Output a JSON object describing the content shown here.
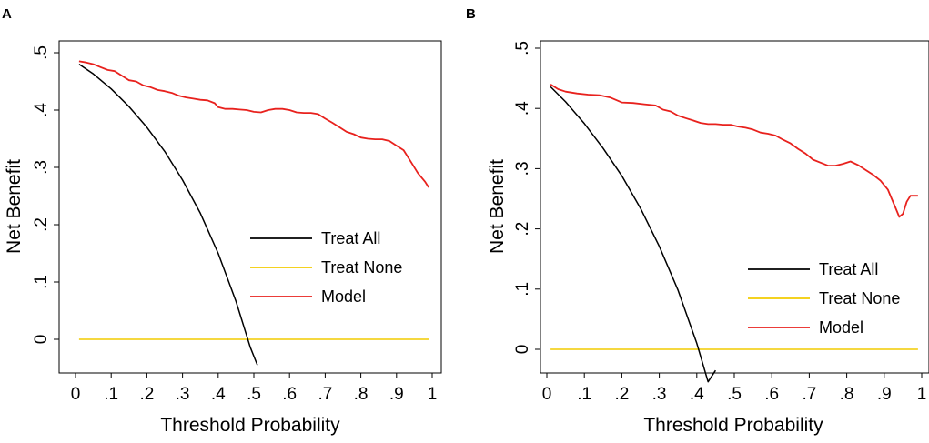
{
  "chart_data": [
    {
      "panel": "A",
      "type": "line",
      "title": "",
      "xlabel": "Threshold Probability",
      "ylabel": "Net Benefit",
      "xlim": [
        0,
        1
      ],
      "ylim": [
        -0.05,
        0.5
      ],
      "x_ticks": [
        0,
        0.1,
        0.2,
        0.3,
        0.4,
        0.5,
        0.6,
        0.7,
        0.8,
        0.9,
        1
      ],
      "x_tick_labels": [
        "0",
        ".1",
        ".2",
        ".3",
        ".4",
        ".5",
        ".6",
        ".7",
        ".8",
        ".9",
        "1"
      ],
      "y_ticks": [
        0,
        0.1,
        0.2,
        0.3,
        0.4,
        0.5
      ],
      "y_tick_labels": [
        "0",
        ".1",
        ".2",
        ".3",
        ".4",
        ".5"
      ],
      "legend_position": "right",
      "series": [
        {
          "name": "Treat All",
          "color": "#000000",
          "x": [
            0.01,
            0.05,
            0.1,
            0.15,
            0.2,
            0.25,
            0.3,
            0.35,
            0.4,
            0.45,
            0.49,
            0.51
          ],
          "y": [
            0.48,
            0.463,
            0.437,
            0.406,
            0.37,
            0.328,
            0.278,
            0.22,
            0.15,
            0.066,
            -0.014,
            -0.045
          ]
        },
        {
          "name": "Treat None",
          "color": "#f2cc00",
          "x": [
            0.01,
            0.99
          ],
          "y": [
            0,
            0
          ]
        },
        {
          "name": "Model",
          "color": "#e8211d",
          "x": [
            0.01,
            0.03,
            0.05,
            0.07,
            0.09,
            0.11,
            0.13,
            0.15,
            0.17,
            0.19,
            0.21,
            0.23,
            0.25,
            0.27,
            0.29,
            0.31,
            0.33,
            0.35,
            0.37,
            0.39,
            0.4,
            0.42,
            0.44,
            0.46,
            0.48,
            0.5,
            0.52,
            0.54,
            0.56,
            0.58,
            0.6,
            0.62,
            0.64,
            0.66,
            0.68,
            0.7,
            0.72,
            0.74,
            0.76,
            0.78,
            0.8,
            0.82,
            0.84,
            0.86,
            0.88,
            0.9,
            0.92,
            0.94,
            0.96,
            0.98,
            0.99
          ],
          "y": [
            0.485,
            0.483,
            0.48,
            0.475,
            0.47,
            0.468,
            0.46,
            0.452,
            0.45,
            0.443,
            0.44,
            0.435,
            0.433,
            0.43,
            0.425,
            0.422,
            0.42,
            0.418,
            0.417,
            0.412,
            0.405,
            0.402,
            0.402,
            0.401,
            0.4,
            0.397,
            0.396,
            0.4,
            0.402,
            0.402,
            0.4,
            0.396,
            0.395,
            0.395,
            0.393,
            0.385,
            0.378,
            0.37,
            0.362,
            0.358,
            0.352,
            0.35,
            0.349,
            0.349,
            0.346,
            0.338,
            0.33,
            0.31,
            0.29,
            0.275,
            0.265
          ]
        }
      ]
    },
    {
      "panel": "B",
      "type": "line",
      "title": "",
      "xlabel": "Threshold Probability",
      "ylabel": "Net Benefit",
      "xlim": [
        0,
        1
      ],
      "ylim": [
        -0.03,
        0.5
      ],
      "x_ticks": [
        0,
        0.1,
        0.2,
        0.3,
        0.4,
        0.5,
        0.6,
        0.7,
        0.8,
        0.9,
        1
      ],
      "x_tick_labels": [
        "0",
        ".1",
        ".2",
        ".3",
        ".4",
        ".5",
        ".6",
        ".7",
        ".8",
        ".9",
        "1"
      ],
      "y_ticks": [
        0,
        0.1,
        0.2,
        0.3,
        0.4,
        0.5
      ],
      "y_tick_labels": [
        "0",
        ".1",
        ".2",
        ".3",
        ".4",
        ".5"
      ],
      "legend_position": "bottom-right",
      "series": [
        {
          "name": "Treat All",
          "color": "#000000",
          "x": [
            0.01,
            0.05,
            0.1,
            0.15,
            0.2,
            0.25,
            0.3,
            0.35,
            0.4,
            0.43,
            0.45
          ],
          "y": [
            0.436,
            0.411,
            0.375,
            0.334,
            0.288,
            0.234,
            0.171,
            0.098,
            0.01,
            -0.054,
            -0.035
          ]
        },
        {
          "name": "Treat None",
          "color": "#f2cc00",
          "x": [
            0.01,
            0.99
          ],
          "y": [
            0,
            0
          ]
        },
        {
          "name": "Model",
          "color": "#e8211d",
          "x": [
            0.01,
            0.03,
            0.05,
            0.08,
            0.11,
            0.14,
            0.17,
            0.2,
            0.23,
            0.26,
            0.29,
            0.31,
            0.33,
            0.35,
            0.37,
            0.39,
            0.41,
            0.43,
            0.45,
            0.47,
            0.49,
            0.51,
            0.53,
            0.55,
            0.57,
            0.59,
            0.61,
            0.63,
            0.65,
            0.67,
            0.69,
            0.71,
            0.73,
            0.75,
            0.77,
            0.79,
            0.81,
            0.83,
            0.85,
            0.87,
            0.89,
            0.91,
            0.92,
            0.93,
            0.94,
            0.95,
            0.96,
            0.97,
            0.99
          ],
          "y": [
            0.44,
            0.432,
            0.428,
            0.425,
            0.423,
            0.422,
            0.418,
            0.41,
            0.409,
            0.407,
            0.405,
            0.398,
            0.395,
            0.388,
            0.384,
            0.38,
            0.376,
            0.374,
            0.374,
            0.373,
            0.373,
            0.37,
            0.368,
            0.365,
            0.36,
            0.358,
            0.355,
            0.348,
            0.342,
            0.333,
            0.325,
            0.315,
            0.31,
            0.305,
            0.305,
            0.308,
            0.312,
            0.306,
            0.298,
            0.29,
            0.28,
            0.265,
            0.25,
            0.235,
            0.22,
            0.225,
            0.245,
            0.255,
            0.255
          ]
        }
      ]
    }
  ],
  "panels": [
    {
      "label": "A"
    },
    {
      "label": "B"
    }
  ]
}
